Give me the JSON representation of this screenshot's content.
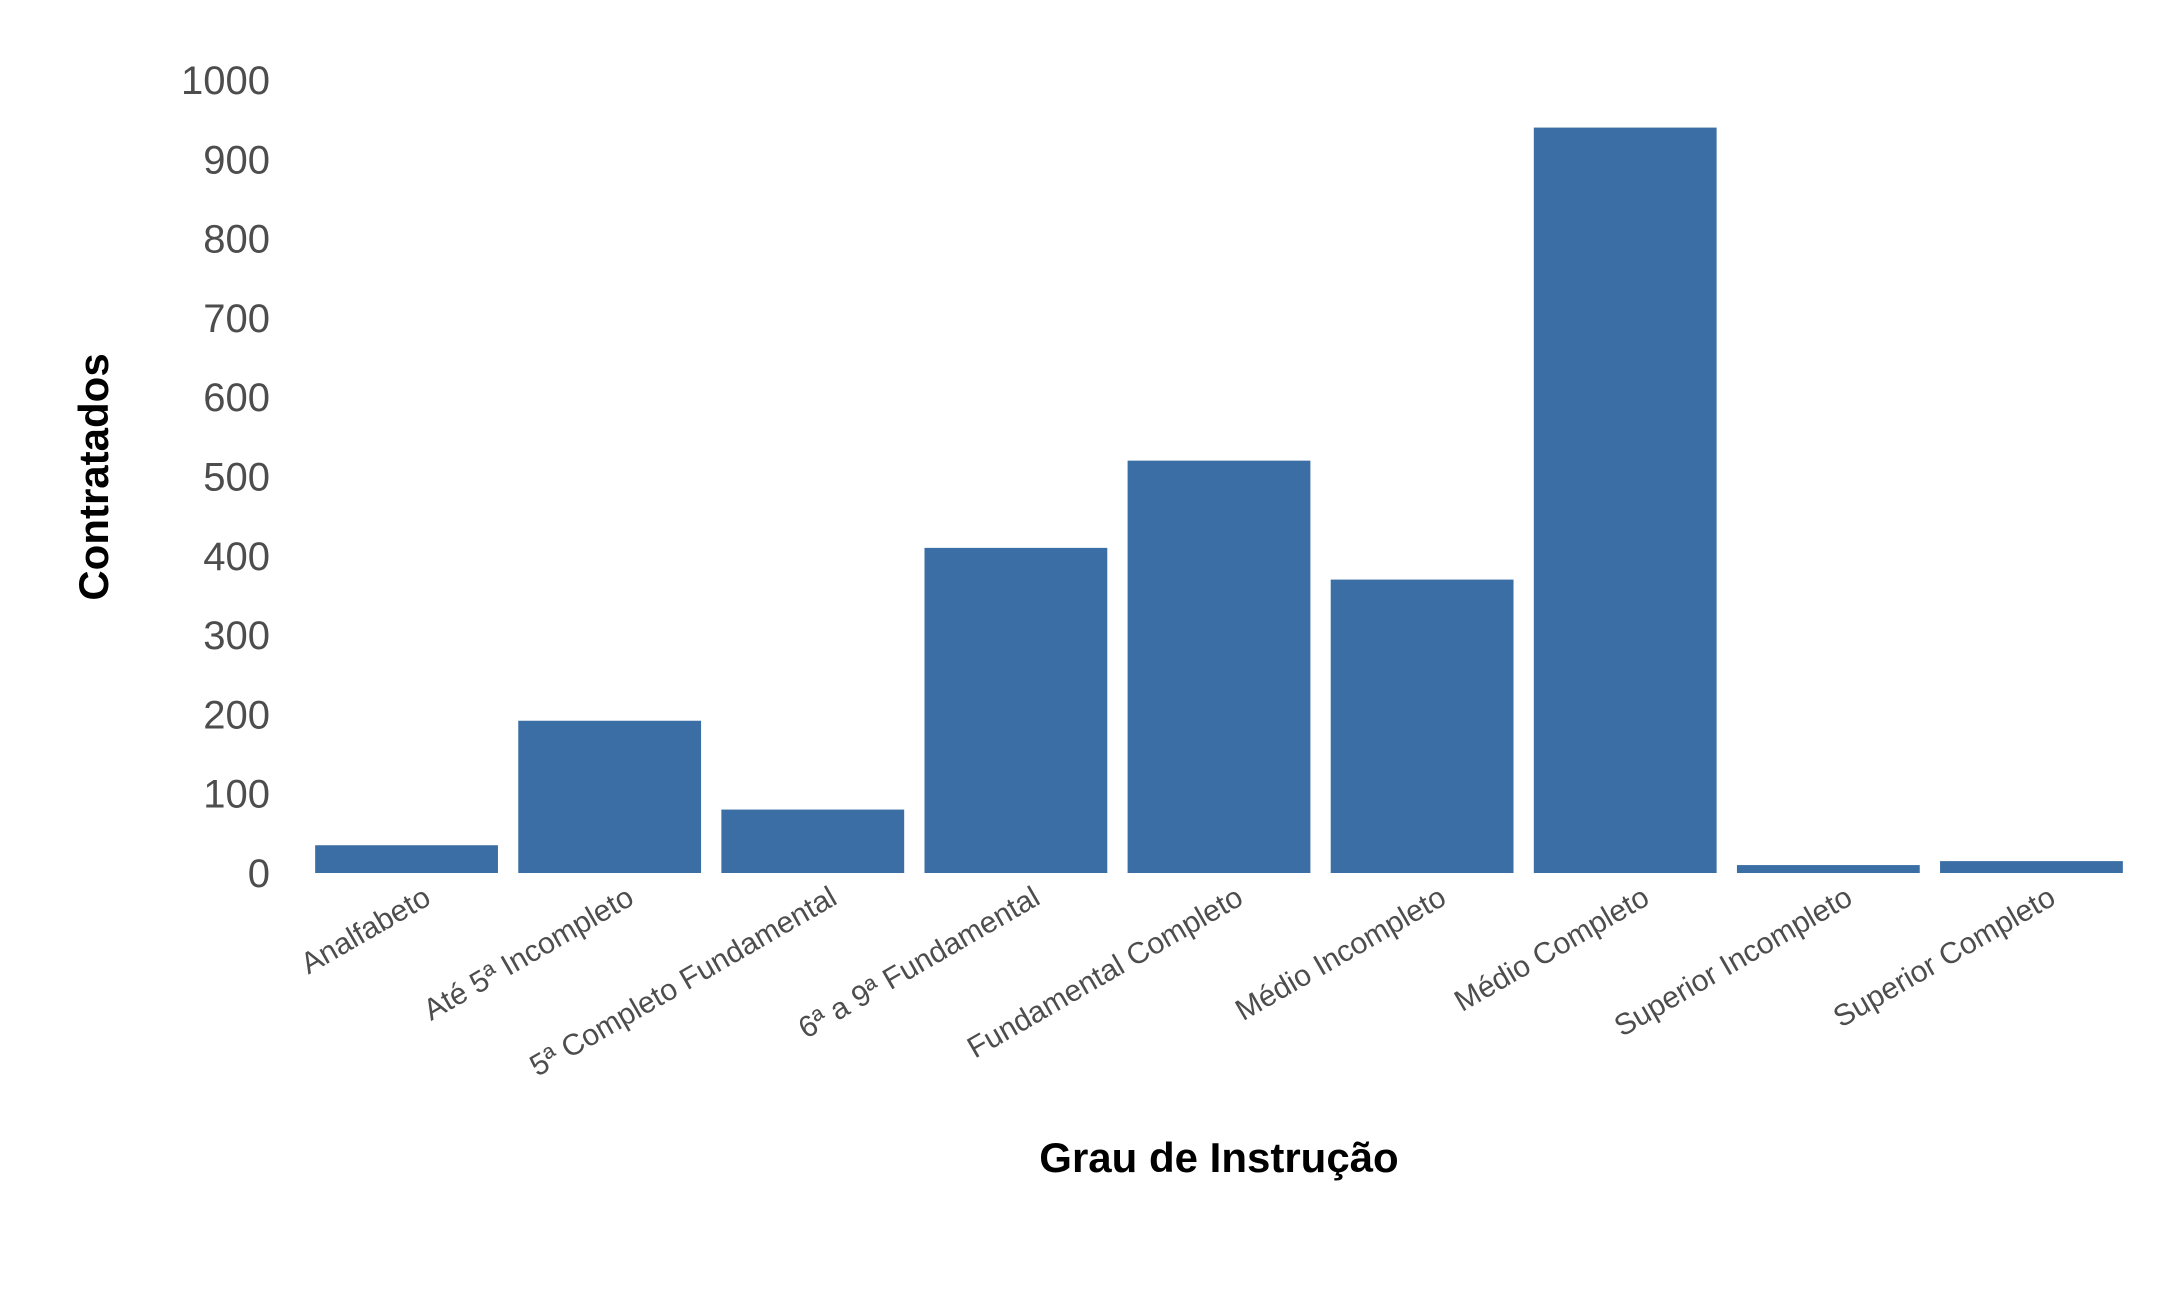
{
  "chart_data": {
    "type": "bar",
    "xlabel": "Grau de Instrução",
    "ylabel": "Contratados",
    "categories": [
      "Analfabeto",
      "Até 5ª Incompleto",
      "5ª Completo Fundamental",
      "6ª a 9ª Fundamental",
      "Fundamental Completo",
      "Médio Incompleto",
      "Médio Completo",
      "Superior Incompleto",
      "Superior Completo"
    ],
    "values": [
      35,
      192,
      80,
      410,
      520,
      370,
      940,
      10,
      15
    ],
    "ylim": [
      0,
      1000
    ],
    "yticks": [
      0,
      100,
      200,
      300,
      400,
      500,
      600,
      700,
      800,
      900,
      1000
    ],
    "bar_color": "#3a6ea5",
    "grid": false,
    "legend": "none"
  }
}
